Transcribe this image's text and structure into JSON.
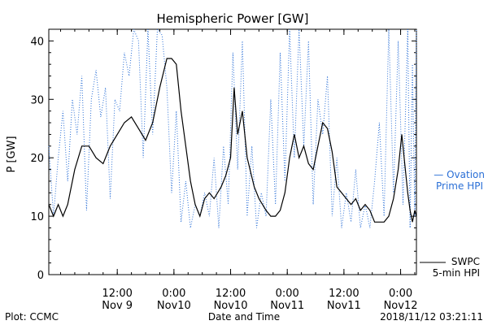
{
  "chart_data": {
    "type": "line",
    "title": "Hemispheric Power [GW]",
    "xlabel": "Date and Time",
    "ylabel": "P [GW]",
    "ylim": [
      0,
      42
    ],
    "xlim": [
      "2018-11-08T21:30",
      "2018-11-12T03:21"
    ],
    "yticks": [
      0,
      10,
      20,
      30,
      40
    ],
    "xticks": [
      {
        "t": "2018-11-09T12:00",
        "line1": "12:00",
        "line2": "Nov 9"
      },
      {
        "t": "2018-11-10T00:00",
        "line1": "0:00",
        "line2": "Nov10"
      },
      {
        "t": "2018-11-10T12:00",
        "line1": "12:00",
        "line2": "Nov10"
      },
      {
        "t": "2018-11-11T00:00",
        "line1": "0:00",
        "line2": "Nov11"
      },
      {
        "t": "2018-11-11T12:00",
        "line1": "12:00",
        "line2": "Nov11"
      },
      {
        "t": "2018-11-12T00:00",
        "line1": "0:00",
        "line2": "Nov12"
      }
    ],
    "grid": false,
    "legend_position": "right",
    "series": [
      {
        "name": "SWPC 5-min HPI",
        "color": "#000000",
        "style": "solid",
        "points": [
          [
            "2018-11-08T21:30",
            12
          ],
          [
            "2018-11-08T22:30",
            10
          ],
          [
            "2018-11-08T23:30",
            12
          ],
          [
            "2018-11-09T00:30",
            10
          ],
          [
            "2018-11-09T01:30",
            12
          ],
          [
            "2018-11-09T03:00",
            18
          ],
          [
            "2018-11-09T04:30",
            22
          ],
          [
            "2018-11-09T06:00",
            22
          ],
          [
            "2018-11-09T07:30",
            20
          ],
          [
            "2018-11-09T09:00",
            19
          ],
          [
            "2018-11-09T10:30",
            22
          ],
          [
            "2018-11-09T12:00",
            24
          ],
          [
            "2018-11-09T13:30",
            26
          ],
          [
            "2018-11-09T15:00",
            27
          ],
          [
            "2018-11-09T16:30",
            25
          ],
          [
            "2018-11-09T18:00",
            23
          ],
          [
            "2018-11-09T19:30",
            26
          ],
          [
            "2018-11-09T21:00",
            32
          ],
          [
            "2018-11-09T22:30",
            37
          ],
          [
            "2018-11-09T23:30",
            37
          ],
          [
            "2018-11-10T00:30",
            36
          ],
          [
            "2018-11-10T01:30",
            28
          ],
          [
            "2018-11-10T02:30",
            22
          ],
          [
            "2018-11-10T03:30",
            16
          ],
          [
            "2018-11-10T04:30",
            12
          ],
          [
            "2018-11-10T05:30",
            10
          ],
          [
            "2018-11-10T06:30",
            13
          ],
          [
            "2018-11-10T07:30",
            14
          ],
          [
            "2018-11-10T08:30",
            13
          ],
          [
            "2018-11-10T10:00",
            15
          ],
          [
            "2018-11-10T11:00",
            17
          ],
          [
            "2018-11-10T12:00",
            20
          ],
          [
            "2018-11-10T12:45",
            32
          ],
          [
            "2018-11-10T13:30",
            24
          ],
          [
            "2018-11-10T14:30",
            28
          ],
          [
            "2018-11-10T15:30",
            20
          ],
          [
            "2018-11-10T17:00",
            15
          ],
          [
            "2018-11-10T18:00",
            13
          ],
          [
            "2018-11-10T19:30",
            11
          ],
          [
            "2018-11-10T20:30",
            10
          ],
          [
            "2018-11-10T21:30",
            10
          ],
          [
            "2018-11-10T22:30",
            11
          ],
          [
            "2018-11-10T23:30",
            14
          ],
          [
            "2018-11-11T00:30",
            20
          ],
          [
            "2018-11-11T01:30",
            24
          ],
          [
            "2018-11-11T02:30",
            20
          ],
          [
            "2018-11-11T03:30",
            22
          ],
          [
            "2018-11-11T04:30",
            19
          ],
          [
            "2018-11-11T05:30",
            18
          ],
          [
            "2018-11-11T06:30",
            22
          ],
          [
            "2018-11-11T07:30",
            26
          ],
          [
            "2018-11-11T08:30",
            25
          ],
          [
            "2018-11-11T09:30",
            21
          ],
          [
            "2018-11-11T10:30",
            15
          ],
          [
            "2018-11-11T11:30",
            14
          ],
          [
            "2018-11-11T12:30",
            13
          ],
          [
            "2018-11-11T13:30",
            12
          ],
          [
            "2018-11-11T14:30",
            13
          ],
          [
            "2018-11-11T15:30",
            11
          ],
          [
            "2018-11-11T16:30",
            12
          ],
          [
            "2018-11-11T17:30",
            11
          ],
          [
            "2018-11-11T18:30",
            9
          ],
          [
            "2018-11-11T19:30",
            9
          ],
          [
            "2018-11-11T20:30",
            9
          ],
          [
            "2018-11-11T21:30",
            10
          ],
          [
            "2018-11-11T22:30",
            13
          ],
          [
            "2018-11-11T23:30",
            18
          ],
          [
            "2018-11-12T00:15",
            24
          ],
          [
            "2018-11-12T00:45",
            20
          ],
          [
            "2018-11-12T01:30",
            14
          ],
          [
            "2018-11-12T02:00",
            11
          ],
          [
            "2018-11-12T02:30",
            9
          ],
          [
            "2018-11-12T03:00",
            11
          ],
          [
            "2018-11-12T03:21",
            10
          ]
        ]
      },
      {
        "name": "Ovation Prime HPI",
        "color": "#2a6fd6",
        "style": "dotted",
        "points": [
          [
            "2018-11-08T21:30",
            22
          ],
          [
            "2018-11-08T22:30",
            10
          ],
          [
            "2018-11-08T23:30",
            20
          ],
          [
            "2018-11-09T00:30",
            28
          ],
          [
            "2018-11-09T01:30",
            16
          ],
          [
            "2018-11-09T02:30",
            30
          ],
          [
            "2018-11-09T03:30",
            24
          ],
          [
            "2018-11-09T04:30",
            34
          ],
          [
            "2018-11-09T05:30",
            11
          ],
          [
            "2018-11-09T06:30",
            30
          ],
          [
            "2018-11-09T07:30",
            35
          ],
          [
            "2018-11-09T08:30",
            27
          ],
          [
            "2018-11-09T09:30",
            32
          ],
          [
            "2018-11-09T10:30",
            13
          ],
          [
            "2018-11-09T11:30",
            30
          ],
          [
            "2018-11-09T12:30",
            28
          ],
          [
            "2018-11-09T13:30",
            38
          ],
          [
            "2018-11-09T14:30",
            34
          ],
          [
            "2018-11-09T15:30",
            42
          ],
          [
            "2018-11-09T16:30",
            40
          ],
          [
            "2018-11-09T17:30",
            20
          ],
          [
            "2018-11-09T18:30",
            42
          ],
          [
            "2018-11-09T19:30",
            24
          ],
          [
            "2018-11-09T20:30",
            42
          ],
          [
            "2018-11-09T21:30",
            41
          ],
          [
            "2018-11-09T22:30",
            32
          ],
          [
            "2018-11-09T23:30",
            14
          ],
          [
            "2018-11-10T00:30",
            28
          ],
          [
            "2018-11-10T01:30",
            9
          ],
          [
            "2018-11-10T02:30",
            16
          ],
          [
            "2018-11-10T03:30",
            8
          ],
          [
            "2018-11-10T04:30",
            12
          ],
          [
            "2018-11-10T05:30",
            10
          ],
          [
            "2018-11-10T06:30",
            14
          ],
          [
            "2018-11-10T07:30",
            10
          ],
          [
            "2018-11-10T08:30",
            20
          ],
          [
            "2018-11-10T09:30",
            8
          ],
          [
            "2018-11-10T10:30",
            22
          ],
          [
            "2018-11-10T11:30",
            12
          ],
          [
            "2018-11-10T12:30",
            38
          ],
          [
            "2018-11-10T13:30",
            18
          ],
          [
            "2018-11-10T14:30",
            40
          ],
          [
            "2018-11-10T15:30",
            10
          ],
          [
            "2018-11-10T16:30",
            22
          ],
          [
            "2018-11-10T17:30",
            8
          ],
          [
            "2018-11-10T18:30",
            14
          ],
          [
            "2018-11-10T19:30",
            10
          ],
          [
            "2018-11-10T20:30",
            30
          ],
          [
            "2018-11-10T21:30",
            12
          ],
          [
            "2018-11-10T22:30",
            38
          ],
          [
            "2018-11-10T23:30",
            16
          ],
          [
            "2018-11-11T00:30",
            42
          ],
          [
            "2018-11-11T01:30",
            20
          ],
          [
            "2018-11-11T02:30",
            42
          ],
          [
            "2018-11-11T03:30",
            22
          ],
          [
            "2018-11-11T04:30",
            40
          ],
          [
            "2018-11-11T05:30",
            12
          ],
          [
            "2018-11-11T06:30",
            30
          ],
          [
            "2018-11-11T07:30",
            24
          ],
          [
            "2018-11-11T08:30",
            34
          ],
          [
            "2018-11-11T09:30",
            10
          ],
          [
            "2018-11-11T10:30",
            20
          ],
          [
            "2018-11-11T11:30",
            8
          ],
          [
            "2018-11-11T12:30",
            14
          ],
          [
            "2018-11-11T13:30",
            9
          ],
          [
            "2018-11-11T14:30",
            18
          ],
          [
            "2018-11-11T15:30",
            8
          ],
          [
            "2018-11-11T16:30",
            12
          ],
          [
            "2018-11-11T17:30",
            8
          ],
          [
            "2018-11-11T18:30",
            16
          ],
          [
            "2018-11-11T19:30",
            26
          ],
          [
            "2018-11-11T20:30",
            10
          ],
          [
            "2018-11-11T21:30",
            42
          ],
          [
            "2018-11-11T22:30",
            14
          ],
          [
            "2018-11-11T23:30",
            40
          ],
          [
            "2018-11-12T00:30",
            12
          ],
          [
            "2018-11-12T01:30",
            42
          ],
          [
            "2018-11-12T02:00",
            8
          ],
          [
            "2018-11-12T02:30",
            36
          ],
          [
            "2018-11-12T03:00",
            10
          ],
          [
            "2018-11-12T03:21",
            42
          ]
        ]
      }
    ]
  },
  "legend": {
    "ovation_line1": "— Ovation",
    "ovation_line2": "Prime HPI",
    "swpc_line1": "SWPC",
    "swpc_line2": "5-min HPI"
  },
  "footer": {
    "credit": "Plot: CCMC",
    "timestamp": "2018/11/12 03:21:11"
  }
}
